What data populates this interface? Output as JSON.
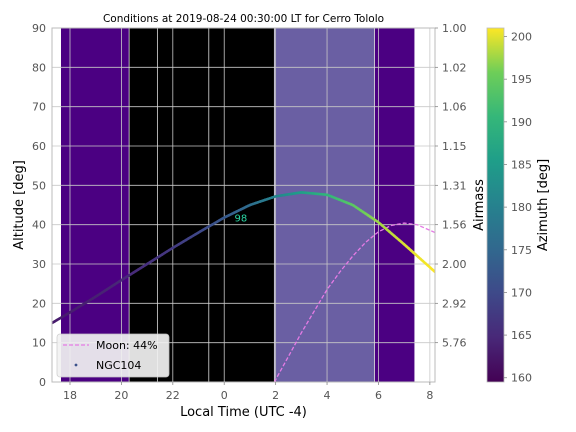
{
  "chart_data": {
    "type": "line",
    "title": "Conditions at 2019-08-24 00:30:00 LT for Cerro Tololo",
    "xlabel": "Local Time (UTC -4)",
    "ylabel": "Altitude [deg]",
    "y2label": "Airmass",
    "colorbar_label": "Azimuth [deg]",
    "xlim": [
      17.3,
      32.2
    ],
    "ylim": [
      0,
      90
    ],
    "x_ticks": [
      18,
      20,
      22,
      24,
      26,
      28,
      30,
      32
    ],
    "x_tick_labels": [
      "18",
      "20",
      "22",
      "0",
      "2",
      "4",
      "6",
      "8"
    ],
    "y_ticks": [
      0,
      10,
      20,
      30,
      40,
      50,
      60,
      70,
      80,
      90
    ],
    "airmass_ticks": [
      "1.00",
      "1.02",
      "1.06",
      "1.15",
      "1.31",
      "1.56",
      "2.00",
      "2.92",
      "5.76"
    ],
    "airmass_tick_altitudes": [
      90,
      80,
      70,
      60,
      50,
      40,
      30,
      20,
      10
    ],
    "colorbar_range": [
      159.5,
      201
    ],
    "colorbar_ticks": [
      160,
      165,
      170,
      175,
      180,
      185,
      190,
      195,
      200
    ],
    "grid": true,
    "legend_position": "lower-left",
    "bands": [
      {
        "type": "twilight",
        "x": [
          17.65,
          20.3
        ],
        "color": "#4b0082"
      },
      {
        "type": "night",
        "x": [
          20.3,
          25.95
        ],
        "color": "#000000"
      },
      {
        "type": "moon-up",
        "x": [
          25.95,
          29.85
        ],
        "color": "#6a5fa3"
      },
      {
        "type": "twilight",
        "x": [
          29.85,
          31.4
        ],
        "color": "#4b0082"
      }
    ],
    "band_dividers": [
      20.3,
      21.4,
      23.4,
      25.95,
      29.85
    ],
    "series": [
      {
        "name": "NGC104",
        "style": "line colored by azimuth",
        "x": [
          17.3,
          18,
          19,
          20,
          21,
          22,
          23,
          24,
          25,
          26,
          27,
          28,
          29,
          30,
          31,
          32.2
        ],
        "altitude": [
          15.0,
          17.7,
          21.7,
          25.9,
          30.0,
          34.1,
          38.0,
          41.8,
          45.0,
          47.2,
          48.2,
          47.6,
          45.0,
          40.6,
          35.0,
          28.0
        ],
        "azimuth": [
          163.0,
          163.3,
          163.8,
          164.6,
          165.8,
          167.4,
          169.5,
          172.3,
          176.0,
          180.5,
          185.5,
          190.0,
          194.0,
          197.5,
          199.7,
          201.0
        ]
      },
      {
        "name": "Moon: 44%",
        "style": "dashed",
        "color": "#e57be5",
        "x": [
          25.95,
          26.5,
          27,
          27.5,
          28,
          28.5,
          29,
          29.5,
          30,
          30.5,
          31,
          31.5,
          32.2
        ],
        "altitude": [
          0,
          6.5,
          12.5,
          18.0,
          23.5,
          28.0,
          32.0,
          35.5,
          38.2,
          39.8,
          40.4,
          40.0,
          38.0
        ]
      }
    ],
    "annotations": [
      {
        "text": "98",
        "x": 24.4,
        "y": 40.8,
        "color": "#2bd7a5"
      }
    ]
  }
}
